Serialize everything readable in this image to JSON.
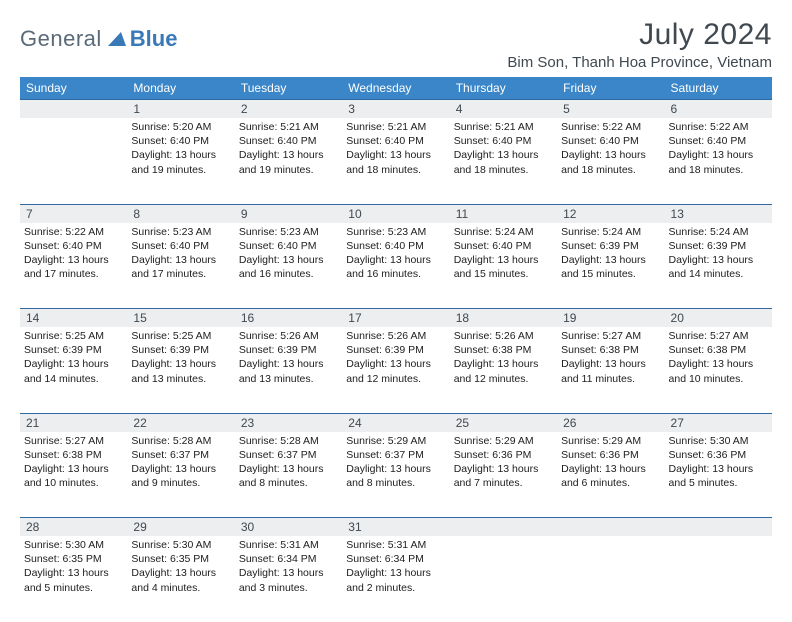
{
  "logo": {
    "general": "General",
    "blue": "Blue"
  },
  "title": "July 2024",
  "location": "Bim Son, Thanh Hoa Province, Vietnam",
  "colors": {
    "header_bg": "#3a86c8",
    "header_text": "#ffffff",
    "daynum_bg": "#eceef0",
    "rule": "#2e69a0",
    "logo_general": "#5a6a78",
    "logo_blue": "#3a79b7"
  },
  "weekdays": [
    "Sunday",
    "Monday",
    "Tuesday",
    "Wednesday",
    "Thursday",
    "Friday",
    "Saturday"
  ],
  "weeks": [
    {
      "nums": [
        "",
        "1",
        "2",
        "3",
        "4",
        "5",
        "6"
      ],
      "cells": [
        {},
        {
          "sunrise": "Sunrise: 5:20 AM",
          "sunset": "Sunset: 6:40 PM",
          "day1": "Daylight: 13 hours",
          "day2": "and 19 minutes."
        },
        {
          "sunrise": "Sunrise: 5:21 AM",
          "sunset": "Sunset: 6:40 PM",
          "day1": "Daylight: 13 hours",
          "day2": "and 19 minutes."
        },
        {
          "sunrise": "Sunrise: 5:21 AM",
          "sunset": "Sunset: 6:40 PM",
          "day1": "Daylight: 13 hours",
          "day2": "and 18 minutes."
        },
        {
          "sunrise": "Sunrise: 5:21 AM",
          "sunset": "Sunset: 6:40 PM",
          "day1": "Daylight: 13 hours",
          "day2": "and 18 minutes."
        },
        {
          "sunrise": "Sunrise: 5:22 AM",
          "sunset": "Sunset: 6:40 PM",
          "day1": "Daylight: 13 hours",
          "day2": "and 18 minutes."
        },
        {
          "sunrise": "Sunrise: 5:22 AM",
          "sunset": "Sunset: 6:40 PM",
          "day1": "Daylight: 13 hours",
          "day2": "and 18 minutes."
        }
      ]
    },
    {
      "nums": [
        "7",
        "8",
        "9",
        "10",
        "11",
        "12",
        "13"
      ],
      "cells": [
        {
          "sunrise": "Sunrise: 5:22 AM",
          "sunset": "Sunset: 6:40 PM",
          "day1": "Daylight: 13 hours",
          "day2": "and 17 minutes."
        },
        {
          "sunrise": "Sunrise: 5:23 AM",
          "sunset": "Sunset: 6:40 PM",
          "day1": "Daylight: 13 hours",
          "day2": "and 17 minutes."
        },
        {
          "sunrise": "Sunrise: 5:23 AM",
          "sunset": "Sunset: 6:40 PM",
          "day1": "Daylight: 13 hours",
          "day2": "and 16 minutes."
        },
        {
          "sunrise": "Sunrise: 5:23 AM",
          "sunset": "Sunset: 6:40 PM",
          "day1": "Daylight: 13 hours",
          "day2": "and 16 minutes."
        },
        {
          "sunrise": "Sunrise: 5:24 AM",
          "sunset": "Sunset: 6:40 PM",
          "day1": "Daylight: 13 hours",
          "day2": "and 15 minutes."
        },
        {
          "sunrise": "Sunrise: 5:24 AM",
          "sunset": "Sunset: 6:39 PM",
          "day1": "Daylight: 13 hours",
          "day2": "and 15 minutes."
        },
        {
          "sunrise": "Sunrise: 5:24 AM",
          "sunset": "Sunset: 6:39 PM",
          "day1": "Daylight: 13 hours",
          "day2": "and 14 minutes."
        }
      ]
    },
    {
      "nums": [
        "14",
        "15",
        "16",
        "17",
        "18",
        "19",
        "20"
      ],
      "cells": [
        {
          "sunrise": "Sunrise: 5:25 AM",
          "sunset": "Sunset: 6:39 PM",
          "day1": "Daylight: 13 hours",
          "day2": "and 14 minutes."
        },
        {
          "sunrise": "Sunrise: 5:25 AM",
          "sunset": "Sunset: 6:39 PM",
          "day1": "Daylight: 13 hours",
          "day2": "and 13 minutes."
        },
        {
          "sunrise": "Sunrise: 5:26 AM",
          "sunset": "Sunset: 6:39 PM",
          "day1": "Daylight: 13 hours",
          "day2": "and 13 minutes."
        },
        {
          "sunrise": "Sunrise: 5:26 AM",
          "sunset": "Sunset: 6:39 PM",
          "day1": "Daylight: 13 hours",
          "day2": "and 12 minutes."
        },
        {
          "sunrise": "Sunrise: 5:26 AM",
          "sunset": "Sunset: 6:38 PM",
          "day1": "Daylight: 13 hours",
          "day2": "and 12 minutes."
        },
        {
          "sunrise": "Sunrise: 5:27 AM",
          "sunset": "Sunset: 6:38 PM",
          "day1": "Daylight: 13 hours",
          "day2": "and 11 minutes."
        },
        {
          "sunrise": "Sunrise: 5:27 AM",
          "sunset": "Sunset: 6:38 PM",
          "day1": "Daylight: 13 hours",
          "day2": "and 10 minutes."
        }
      ]
    },
    {
      "nums": [
        "21",
        "22",
        "23",
        "24",
        "25",
        "26",
        "27"
      ],
      "cells": [
        {
          "sunrise": "Sunrise: 5:27 AM",
          "sunset": "Sunset: 6:38 PM",
          "day1": "Daylight: 13 hours",
          "day2": "and 10 minutes."
        },
        {
          "sunrise": "Sunrise: 5:28 AM",
          "sunset": "Sunset: 6:37 PM",
          "day1": "Daylight: 13 hours",
          "day2": "and 9 minutes."
        },
        {
          "sunrise": "Sunrise: 5:28 AM",
          "sunset": "Sunset: 6:37 PM",
          "day1": "Daylight: 13 hours",
          "day2": "and 8 minutes."
        },
        {
          "sunrise": "Sunrise: 5:29 AM",
          "sunset": "Sunset: 6:37 PM",
          "day1": "Daylight: 13 hours",
          "day2": "and 8 minutes."
        },
        {
          "sunrise": "Sunrise: 5:29 AM",
          "sunset": "Sunset: 6:36 PM",
          "day1": "Daylight: 13 hours",
          "day2": "and 7 minutes."
        },
        {
          "sunrise": "Sunrise: 5:29 AM",
          "sunset": "Sunset: 6:36 PM",
          "day1": "Daylight: 13 hours",
          "day2": "and 6 minutes."
        },
        {
          "sunrise": "Sunrise: 5:30 AM",
          "sunset": "Sunset: 6:36 PM",
          "day1": "Daylight: 13 hours",
          "day2": "and 5 minutes."
        }
      ]
    },
    {
      "nums": [
        "28",
        "29",
        "30",
        "31",
        "",
        "",
        ""
      ],
      "cells": [
        {
          "sunrise": "Sunrise: 5:30 AM",
          "sunset": "Sunset: 6:35 PM",
          "day1": "Daylight: 13 hours",
          "day2": "and 5 minutes."
        },
        {
          "sunrise": "Sunrise: 5:30 AM",
          "sunset": "Sunset: 6:35 PM",
          "day1": "Daylight: 13 hours",
          "day2": "and 4 minutes."
        },
        {
          "sunrise": "Sunrise: 5:31 AM",
          "sunset": "Sunset: 6:34 PM",
          "day1": "Daylight: 13 hours",
          "day2": "and 3 minutes."
        },
        {
          "sunrise": "Sunrise: 5:31 AM",
          "sunset": "Sunset: 6:34 PM",
          "day1": "Daylight: 13 hours",
          "day2": "and 2 minutes."
        },
        {},
        {},
        {}
      ]
    }
  ]
}
